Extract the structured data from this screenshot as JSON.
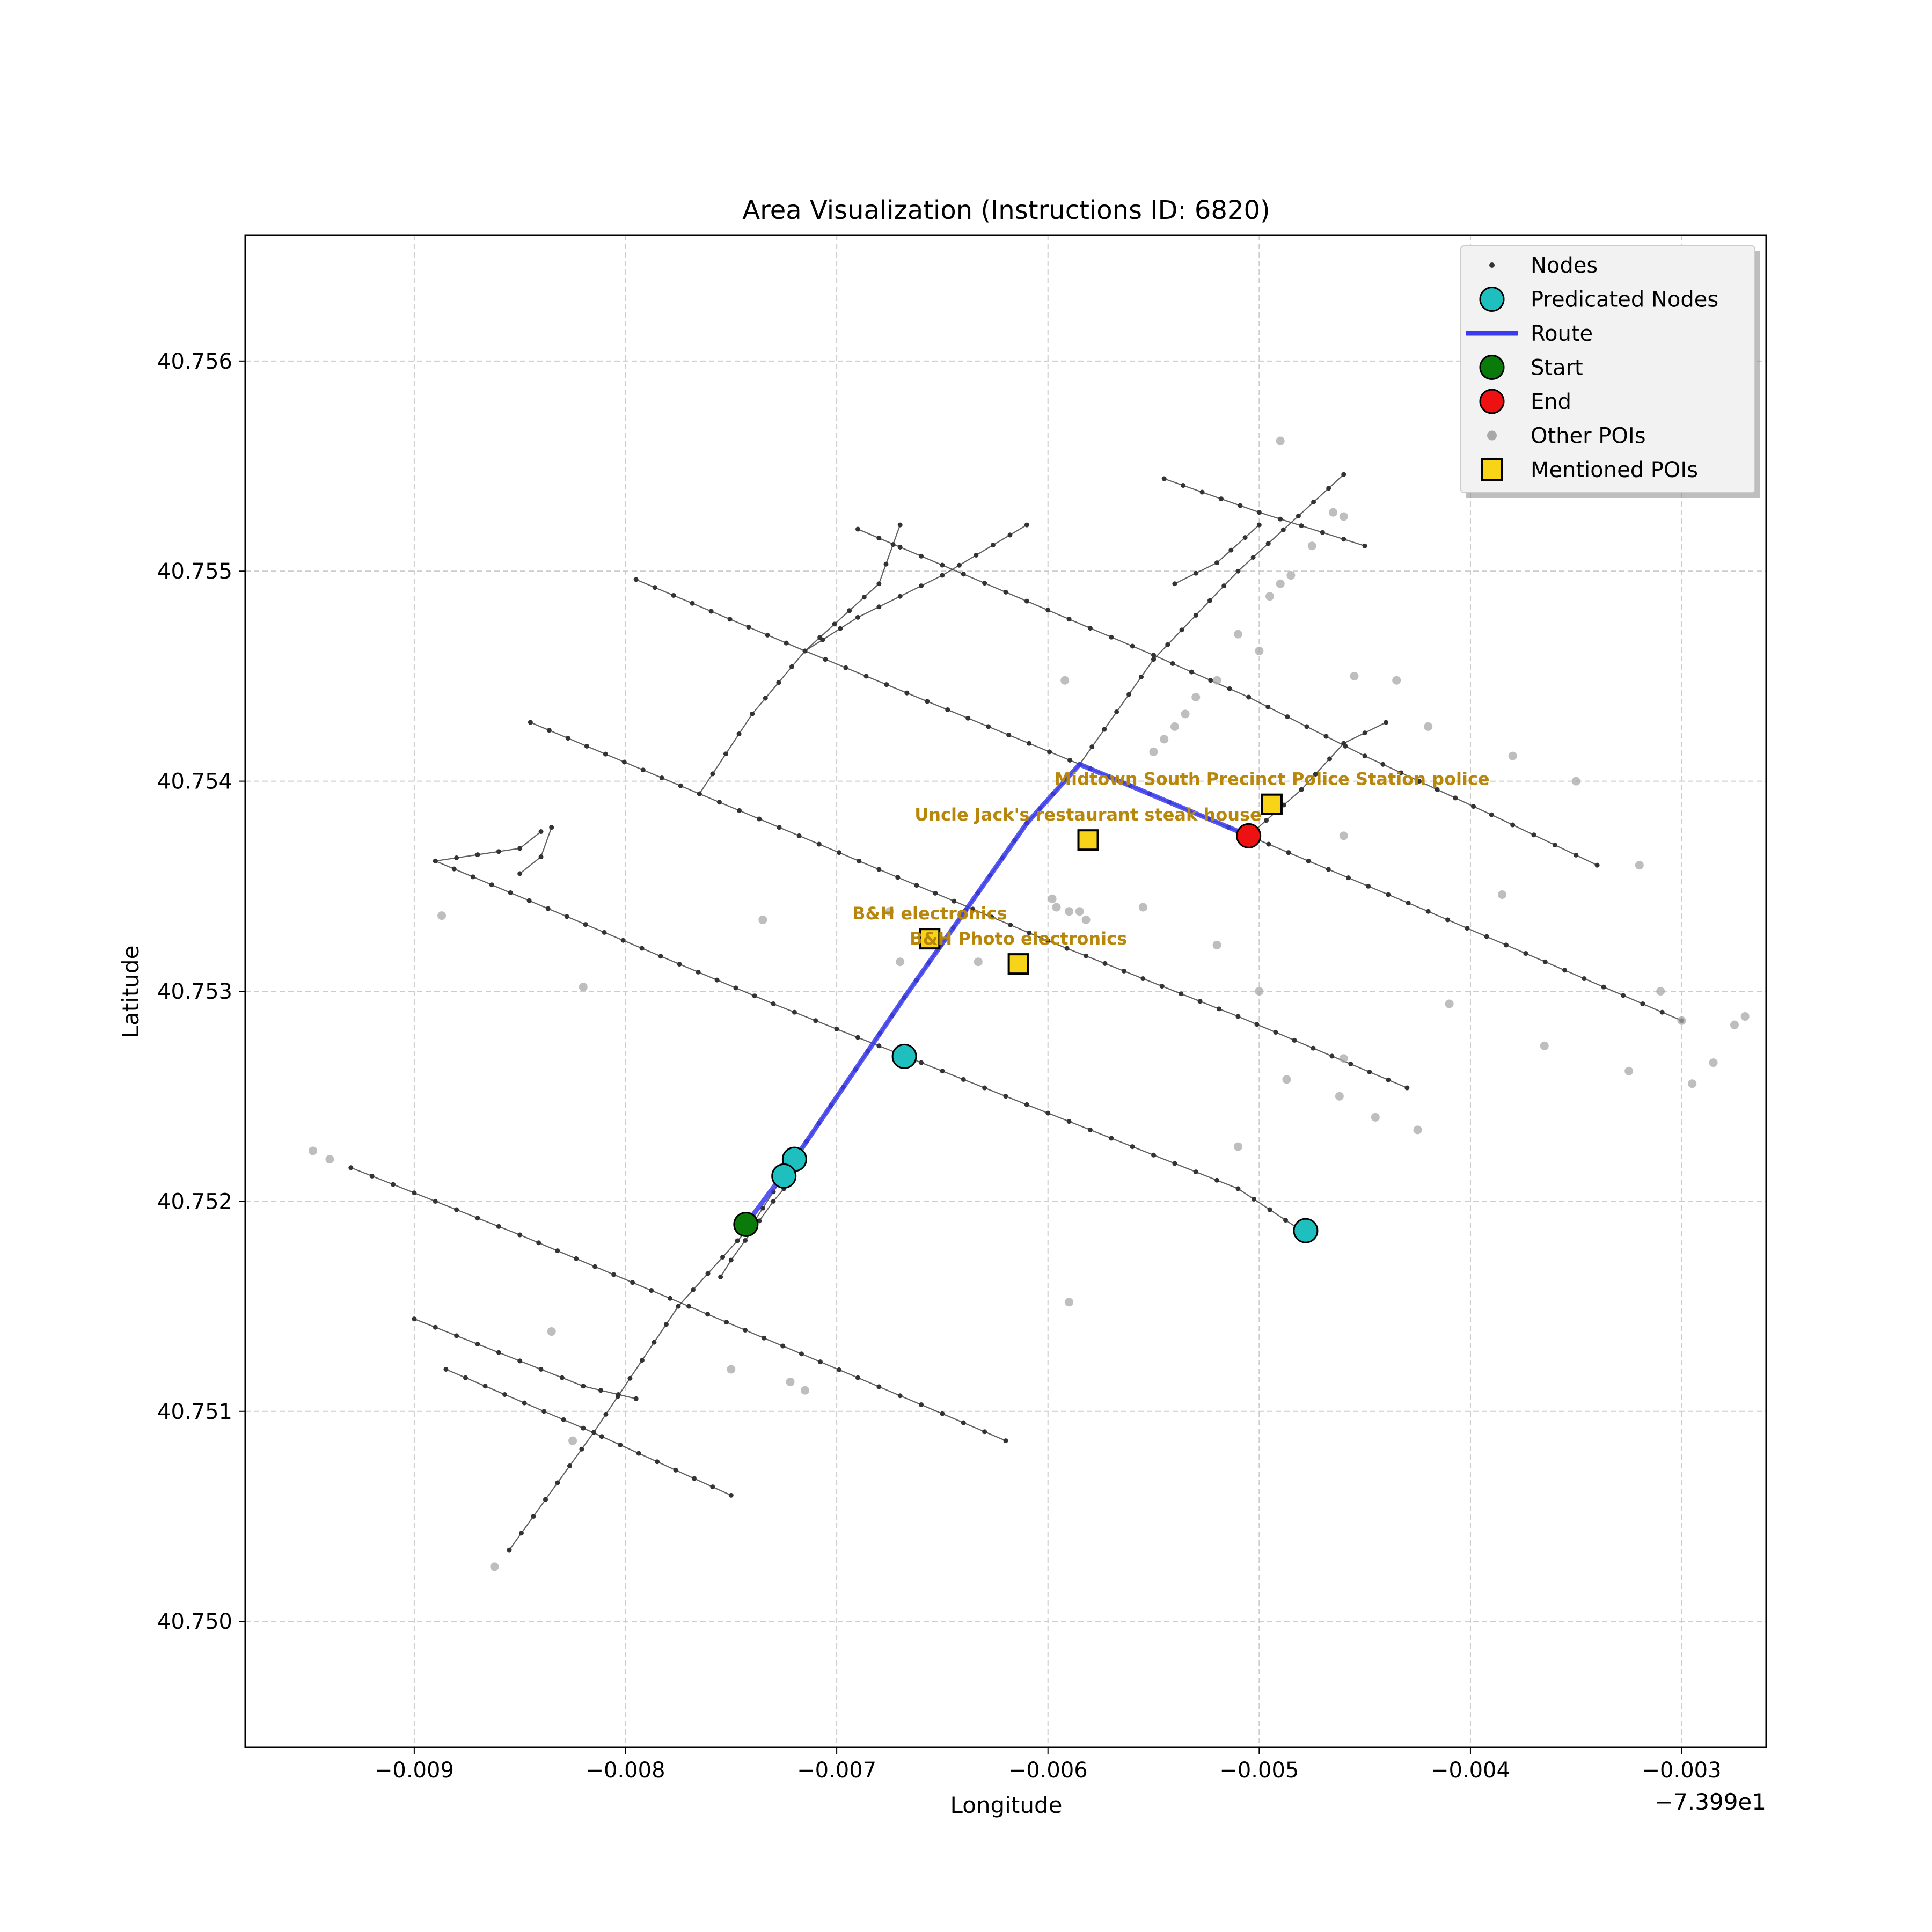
{
  "chart_data": {
    "type": "scatter",
    "title": "Area Visualization (Instructions ID: 6820)",
    "xlabel": "Longitude",
    "ylabel": "Latitude",
    "offset_label": "−7.399e1",
    "xlim": [
      -0.0098,
      -0.0026
    ],
    "ylim": [
      40.7494,
      40.7566
    ],
    "grid": true,
    "x_ticks": [
      -0.009,
      -0.008,
      -0.007,
      -0.006,
      -0.005,
      -0.004,
      -0.003
    ],
    "x_tick_labels": [
      "−0.009",
      "−0.008",
      "−0.007",
      "−0.006",
      "−0.005",
      "−0.004",
      "−0.003"
    ],
    "y_ticks": [
      40.75,
      40.751,
      40.752,
      40.753,
      40.754,
      40.755,
      40.756
    ],
    "y_tick_labels": [
      "40.750",
      "40.751",
      "40.752",
      "40.753",
      "40.754",
      "40.755",
      "40.756"
    ],
    "legend_position": "top-right",
    "legend": [
      {
        "label": "Nodes",
        "marker": "small-dot"
      },
      {
        "label": "Predicated Nodes",
        "marker": "cyan-circle"
      },
      {
        "label": "Route",
        "marker": "blue-line"
      },
      {
        "label": "Start",
        "marker": "green-circle"
      },
      {
        "label": "End",
        "marker": "red-circle"
      },
      {
        "label": "Other POIs",
        "marker": "gray-dot"
      },
      {
        "label": "Mentioned POIs",
        "marker": "gold-square"
      }
    ],
    "colors": {
      "nodes": "#333333",
      "edges": "#444444",
      "predicated": "#1fbfbf",
      "route": "#3a3af0",
      "start": "#0a7a0a",
      "end": "#ee1111",
      "other_poi": "#a8a8a8",
      "mentioned_poi": "#f7d417",
      "poi_label": "#b8860b",
      "grid": "#cccccc"
    },
    "streets": [
      [
        [
          -0.00795,
          40.75496
        ],
        [
          -0.00715,
          40.75462
        ],
        [
          -0.0058,
          40.75406
        ],
        [
          -0.00505,
          40.75374
        ],
        [
          -0.0042,
          40.75338
        ],
        [
          -0.003,
          40.75286
        ]
      ],
      [
        [
          -0.00845,
          40.75428
        ],
        [
          -0.00765,
          40.75394
        ],
        [
          -0.0068,
          40.75358
        ],
        [
          -0.006,
          40.75324
        ],
        [
          -0.0051,
          40.75288
        ],
        [
          -0.0043,
          40.75254
        ]
      ],
      [
        [
          -0.0089,
          40.75362
        ],
        [
          -0.0081,
          40.75328
        ],
        [
          -0.0073,
          40.75294
        ],
        [
          -0.0067,
          40.7527
        ],
        [
          -0.0059,
          40.75238
        ],
        [
          -0.0051,
          40.75206
        ],
        [
          -0.0048,
          40.75186
        ]
      ],
      [
        [
          -0.0093,
          40.75216
        ],
        [
          -0.0085,
          40.75184
        ],
        [
          -0.0077,
          40.7515
        ],
        [
          -0.0069,
          40.75116
        ],
        [
          -0.0062,
          40.75086
        ]
      ],
      [
        [
          -0.009,
          40.75144
        ],
        [
          -0.0085,
          40.75124
        ],
        [
          -0.0082,
          40.75112
        ],
        [
          -0.00795,
          40.75106
        ]
      ],
      [
        [
          -0.00885,
          40.7512
        ],
        [
          -0.0082,
          40.75092
        ],
        [
          -0.0075,
          40.7506
        ]
      ],
      [
        [
          -0.00545,
          40.75544
        ],
        [
          -0.005,
          40.75528
        ],
        [
          -0.0045,
          40.75512
        ]
      ],
      [
        [
          -0.0069,
          40.7552
        ],
        [
          -0.0062,
          40.7549
        ],
        [
          -0.0055,
          40.7546
        ],
        [
          -0.00505,
          40.7544
        ],
        [
          -0.0045,
          40.75412
        ],
        [
          -0.0039,
          40.75384
        ],
        [
          -0.0034,
          40.7536
        ]
      ],
      [
        [
          -0.00855,
          40.75034
        ],
        [
          -0.00815,
          40.7509
        ],
        [
          -0.00775,
          40.7515
        ],
        [
          -0.0074,
          40.75189
        ],
        [
          -0.0072,
          40.7522
        ],
        [
          -0.00668,
          40.75297
        ],
        [
          -0.0061,
          40.7538
        ],
        [
          -0.00585,
          40.75408
        ],
        [
          -0.0055,
          40.75458
        ],
        [
          -0.0051,
          40.755
        ],
        [
          -0.0046,
          40.75546
        ]
      ],
      [
        [
          -0.00765,
          40.75394
        ],
        [
          -0.0074,
          40.75432
        ],
        [
          -0.00715,
          40.75462
        ],
        [
          -0.0068,
          40.75494
        ],
        [
          -0.0067,
          40.75522
        ]
      ],
      [
        [
          -0.00715,
          40.75462
        ],
        [
          -0.0069,
          40.75478
        ],
        [
          -0.0065,
          40.75498
        ],
        [
          -0.0061,
          40.75522
        ]
      ],
      [
        [
          -0.0054,
          40.75494
        ],
        [
          -0.0052,
          40.75504
        ],
        [
          -0.005,
          40.75522
        ]
      ],
      [
        [
          -0.00505,
          40.75374
        ],
        [
          -0.0048,
          40.75396
        ],
        [
          -0.0046,
          40.75418
        ],
        [
          -0.0044,
          40.75428
        ]
      ],
      [
        [
          -0.00755,
          40.75164
        ],
        [
          -0.0075,
          40.75172
        ],
        [
          -0.0073,
          40.752
        ],
        [
          -0.00725,
          40.75206
        ]
      ],
      [
        [
          -0.0089,
          40.75362
        ],
        [
          -0.0085,
          40.75368
        ],
        [
          -0.0084,
          40.75376
        ]
      ],
      [
        [
          -0.0085,
          40.75356
        ],
        [
          -0.0084,
          40.75364
        ],
        [
          -0.00835,
          40.75378
        ]
      ]
    ],
    "other_pois": [
      [
        -0.00948,
        40.75224
      ],
      [
        -0.0094,
        40.7522
      ],
      [
        -0.00887,
        40.75336
      ],
      [
        -0.0082,
        40.75302
      ],
      [
        -0.00835,
        40.75138
      ],
      [
        -0.00825,
        40.75086
      ],
      [
        -0.00862,
        40.75026
      ],
      [
        -0.0075,
        40.7512
      ],
      [
        -0.00722,
        40.75114
      ],
      [
        -0.00715,
        40.7511
      ],
      [
        -0.00735,
        40.75334
      ],
      [
        -0.00675,
        40.75338
      ],
      [
        -0.0067,
        40.75314
      ],
      [
        -0.00633,
        40.75314
      ],
      [
        -0.0059,
        40.75152
      ],
      [
        -0.00592,
        40.75448
      ],
      [
        -0.00598,
        40.75344
      ],
      [
        -0.00596,
        40.7534
      ],
      [
        -0.0059,
        40.75338
      ],
      [
        -0.00585,
        40.75338
      ],
      [
        -0.00582,
        40.75334
      ],
      [
        -0.00555,
        40.7534
      ],
      [
        -0.0052,
        40.75322
      ],
      [
        -0.0051,
        40.75226
      ],
      [
        -0.005,
        40.753
      ],
      [
        -0.00487,
        40.75258
      ],
      [
        -0.0046,
        40.75268
      ],
      [
        -0.00462,
        40.7525
      ],
      [
        -0.00445,
        40.7524
      ],
      [
        -0.00425,
        40.75234
      ],
      [
        -0.0041,
        40.75294
      ],
      [
        -0.00385,
        40.75346
      ],
      [
        -0.00365,
        40.75274
      ],
      [
        -0.0032,
        40.7536
      ],
      [
        -0.00325,
        40.75262
      ],
      [
        -0.0031,
        40.753
      ],
      [
        -0.003,
        40.75286
      ],
      [
        -0.00295,
        40.75256
      ],
      [
        -0.00285,
        40.75266
      ],
      [
        -0.0027,
        40.75288
      ],
      [
        -0.00275,
        40.75284
      ],
      [
        -0.0055,
        40.75414
      ],
      [
        -0.00545,
        40.7542
      ],
      [
        -0.0054,
        40.75426
      ],
      [
        -0.00535,
        40.75432
      ],
      [
        -0.0053,
        40.7544
      ],
      [
        -0.0052,
        40.75448
      ],
      [
        -0.005,
        40.75462
      ],
      [
        -0.0051,
        40.7547
      ],
      [
        -0.00495,
        40.75488
      ],
      [
        -0.0049,
        40.75494
      ],
      [
        -0.00485,
        40.75498
      ],
      [
        -0.00475,
        40.75512
      ],
      [
        -0.0046,
        40.75526
      ],
      [
        -0.00465,
        40.75528
      ],
      [
        -0.0049,
        40.75562
      ],
      [
        -0.00455,
        40.7545
      ],
      [
        -0.00435,
        40.75448
      ],
      [
        -0.0042,
        40.75426
      ],
      [
        -0.0038,
        40.75412
      ],
      [
        -0.0035,
        40.754
      ],
      [
        -0.0046,
        40.75374
      ]
    ],
    "predicated_nodes": [
      [
        -0.00668,
        40.75269
      ],
      [
        -0.0072,
        40.7522
      ],
      [
        -0.00725,
        40.75212
      ],
      [
        -0.00478,
        40.75186
      ]
    ],
    "route": [
      [
        -0.00743,
        40.75189
      ],
      [
        -0.0072,
        40.7522
      ],
      [
        -0.00668,
        40.75297
      ],
      [
        -0.0061,
        40.7538
      ],
      [
        -0.00585,
        40.75408
      ],
      [
        -0.00505,
        40.75374
      ]
    ],
    "start": [
      -0.00743,
      40.75189
    ],
    "end": [
      -0.00505,
      40.75374
    ],
    "mentioned_pois": [
      {
        "x": -0.00494,
        "y": 40.75389,
        "label": "Midtown South Precinct Police Station police",
        "label_anchor": "middle"
      },
      {
        "x": -0.00581,
        "y": 40.75372,
        "label": "Uncle Jack's restaurant steak house",
        "label_anchor": "middle"
      },
      {
        "x": -0.00656,
        "y": 40.75325,
        "label": "B&H    electronics",
        "label_anchor": "middle"
      },
      {
        "x": -0.00614,
        "y": 40.75313,
        "label": "B&H Photo     electronics",
        "label_anchor": "middle"
      }
    ]
  }
}
